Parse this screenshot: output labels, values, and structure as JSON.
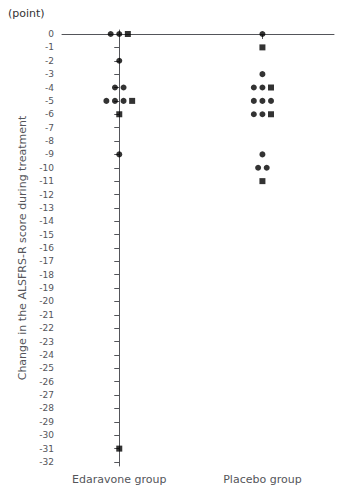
{
  "chart_data": {
    "type": "scatter",
    "ylabel": "Change in the ALSFRS-R score during treatment",
    "annotation": "(point)",
    "categories": [
      "Edaravone group",
      "Placebo group"
    ],
    "series": [
      {
        "marker": "circle",
        "color": "#000000",
        "values": [
          [
            0,
            0,
            -2,
            -4,
            -4,
            -5,
            -5,
            -5,
            -9
          ],
          [
            0,
            -3,
            -4,
            -4,
            -5,
            -5,
            -5,
            -6,
            -6,
            -9,
            -10,
            -10
          ]
        ]
      },
      {
        "marker": "square",
        "color": "#000000",
        "values": [
          [
            0,
            -5,
            -6,
            -31
          ],
          [
            -1,
            -4,
            -6,
            -11
          ]
        ]
      }
    ],
    "ylim": [
      -32.3,
      0.3
    ],
    "yticks": [
      0,
      -1,
      -2,
      -3,
      -4,
      -5,
      -6,
      -7,
      -8,
      -9,
      -10,
      -11,
      -12,
      -13,
      -14,
      -15,
      -16,
      -17,
      -18,
      -19,
      -20,
      -21,
      -22,
      -23,
      -24,
      -25,
      -26,
      -27,
      -28,
      -29,
      -30,
      -31,
      -32
    ],
    "grid": false
  }
}
